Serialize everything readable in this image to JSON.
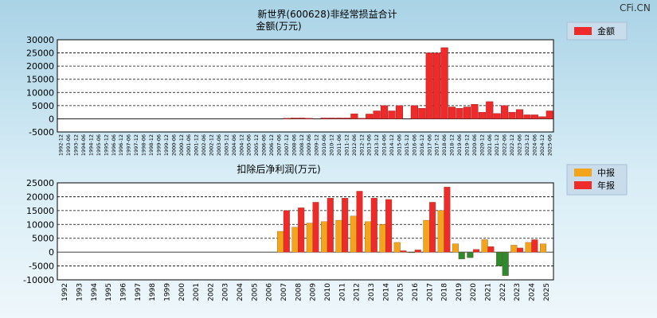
{
  "watermark": "CFi.CN",
  "colors": {
    "red": "#ee2a2a",
    "orange": "#f2a51a",
    "green": "#2f8a2f"
  },
  "chart_data": [
    {
      "type": "bar",
      "title": "新世界(600628)非经常损益合计",
      "ylabel": "金额(万元)",
      "ylim": [
        -5000,
        30000
      ],
      "yticks": [
        30000,
        25000,
        20000,
        15000,
        10000,
        5000,
        0,
        -5000
      ],
      "legend": [
        {
          "name": "金额",
          "color": "red"
        }
      ],
      "categories": [
        "1992-12",
        "1993-06",
        "1993-12",
        "1994-06",
        "1994-12",
        "1995-06",
        "1995-12",
        "1996-06",
        "1996-12",
        "1997-06",
        "1997-12",
        "1998-06",
        "1998-12",
        "1999-06",
        "1999-12",
        "2000-06",
        "2000-12",
        "2001-06",
        "2001-12",
        "2002-06",
        "2002-12",
        "2003-06",
        "2003-12",
        "2004-06",
        "2004-12",
        "2005-06",
        "2005-12",
        "2006-06",
        "2006-12",
        "2007-06",
        "2007-12",
        "2008-06",
        "2008-12",
        "2009-06",
        "2009-12",
        "2010-06",
        "2010-12",
        "2011-06",
        "2011-12",
        "2012-06",
        "2012-12",
        "2013-06",
        "2013-12",
        "2014-06",
        "2014-12",
        "2015-06",
        "2015-12",
        "2016-06",
        "2016-12",
        "2017-06",
        "2017-12",
        "2018-06",
        "2018-12",
        "2019-06",
        "2019-12",
        "2020-06",
        "2020-12",
        "2021-06",
        "2021-12",
        "2022-06",
        "2022-12",
        "2023-06",
        "2023-12",
        "2024-06",
        "2024-12",
        "2025-06"
      ],
      "values": [
        0,
        0,
        0,
        0,
        0,
        0,
        0,
        0,
        0,
        0,
        0,
        0,
        0,
        0,
        0,
        0,
        0,
        0,
        0,
        0,
        0,
        0,
        0,
        0,
        0,
        0,
        0,
        0,
        0,
        0,
        200,
        300,
        300,
        200,
        0,
        300,
        300,
        300,
        300,
        1900,
        200,
        1800,
        3000,
        5000,
        3000,
        5000,
        0,
        5000,
        4000,
        25000,
        25000,
        27000,
        4500,
        4000,
        4500,
        5500,
        2500,
        6500,
        2000,
        5000,
        2500,
        3500,
        1500,
        1500,
        800,
        3000
      ]
    },
    {
      "type": "bar",
      "title": "扣除后净利润(万元)",
      "ylim": [
        -10000,
        25000
      ],
      "yticks": [
        25000,
        20000,
        15000,
        10000,
        5000,
        0,
        -5000,
        -10000
      ],
      "categories": [
        "1992",
        "1993",
        "1994",
        "1995",
        "1996",
        "1997",
        "1998",
        "1999",
        "2000",
        "2001",
        "2002",
        "2003",
        "2004",
        "2005",
        "2006",
        "2007",
        "2008",
        "2009",
        "2010",
        "2011",
        "2012",
        "2013",
        "2014",
        "2015",
        "2016",
        "2017",
        "2018",
        "2019",
        "2020",
        "2021",
        "2022",
        "2023",
        "2024",
        "2025"
      ],
      "series": [
        {
          "name": "中报",
          "color": "orange",
          "values": [
            null,
            null,
            null,
            null,
            null,
            null,
            null,
            null,
            null,
            null,
            null,
            null,
            null,
            null,
            null,
            7500,
            9000,
            10500,
            11000,
            11500,
            13000,
            11000,
            10000,
            3500,
            -200,
            11500,
            15000,
            3000,
            -2000,
            4500,
            -5000,
            2500,
            3500,
            3000
          ]
        },
        {
          "name": "年报",
          "color": "red",
          "values": [
            null,
            null,
            null,
            null,
            null,
            null,
            null,
            null,
            null,
            null,
            null,
            null,
            null,
            null,
            null,
            15000,
            16000,
            18000,
            19500,
            19500,
            22000,
            19500,
            19000,
            500,
            800,
            18000,
            23500,
            -2500,
            1000,
            2000,
            -8500,
            1500,
            4500,
            null
          ]
        }
      ]
    }
  ]
}
